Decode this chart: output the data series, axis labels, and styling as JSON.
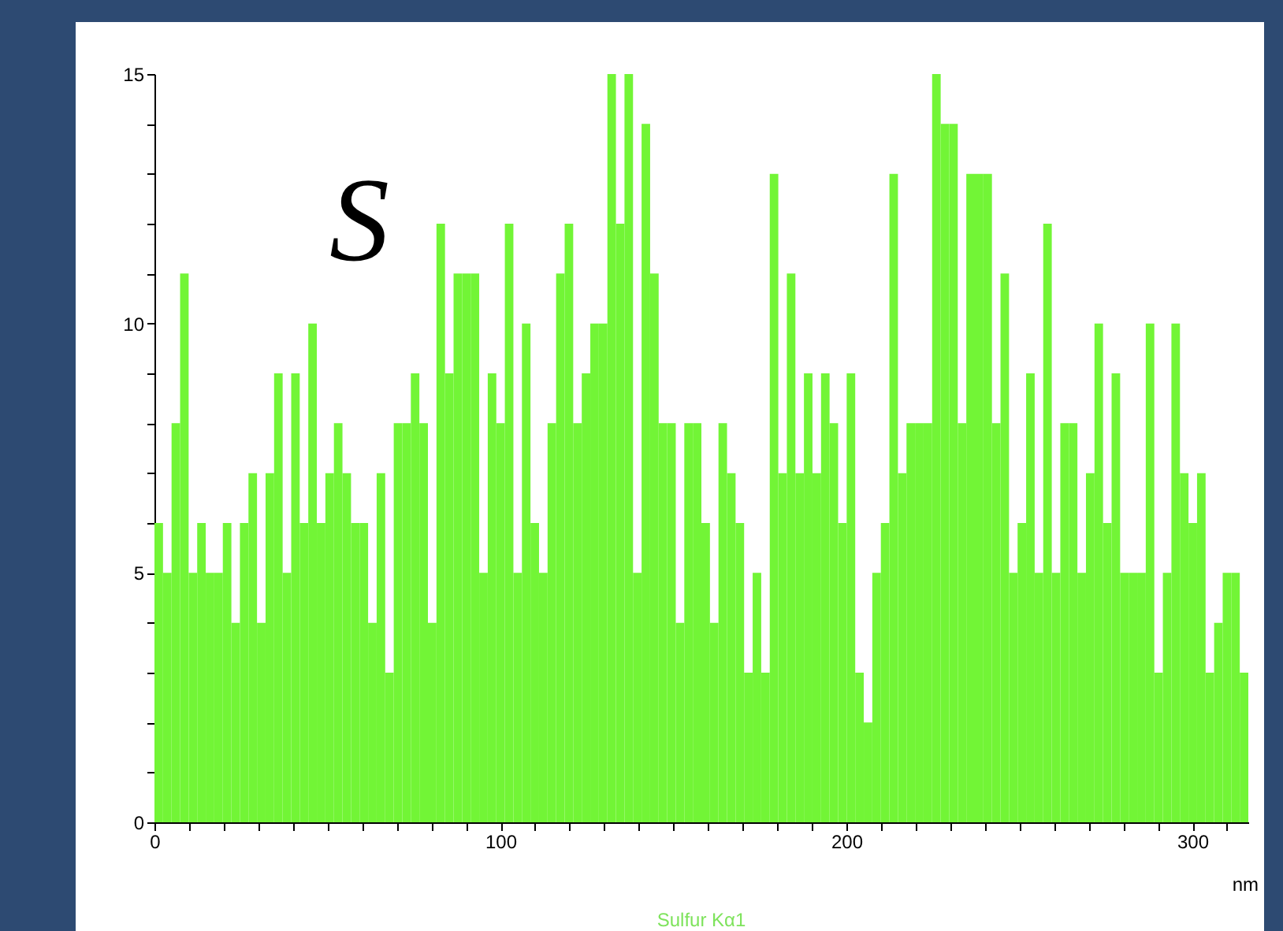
{
  "chart_data": {
    "type": "histogram",
    "title": "Sulfur Kα1",
    "xlabel": "nm",
    "annotations": [
      "S"
    ],
    "color": "#72f536",
    "bins": [
      0,
      2.47,
      4.94,
      7.41,
      9.88,
      12.35,
      14.82,
      17.29,
      19.76,
      22.23,
      24.7,
      27.17,
      29.64,
      32.11,
      34.58,
      37.05,
      39.52,
      41.99,
      44.46,
      46.93,
      49.4,
      51.87,
      54.34,
      56.81,
      59.28,
      61.75,
      64.22,
      66.69,
      69.16,
      71.63,
      74.1,
      76.57,
      79.04,
      81.51,
      83.98,
      86.45,
      88.92,
      91.39,
      93.86,
      96.33,
      98.8,
      101.27,
      103.74,
      106.21,
      108.68,
      111.15,
      113.62,
      116.09,
      118.56,
      121.03,
      123.5,
      125.97,
      128.44,
      130.91,
      133.38,
      135.85,
      138.32,
      140.79,
      143.26,
      145.73,
      148.2,
      150.67,
      153.14,
      155.61,
      158.08,
      160.55,
      163.02,
      165.49,
      167.96,
      170.43,
      172.9,
      175.37,
      177.84,
      180.31,
      182.78,
      185.25,
      187.72,
      190.19,
      192.66,
      195.13,
      197.6,
      200.07,
      202.54,
      205.01,
      207.48,
      209.95,
      212.42,
      214.89,
      217.36,
      219.83,
      222.3,
      224.77,
      227.24,
      229.71,
      232.18,
      234.65,
      237.12,
      239.59,
      242.06,
      244.53,
      247,
      249.47,
      251.94,
      254.41,
      256.88,
      259.35,
      261.82,
      264.29,
      266.76,
      269.23,
      271.7,
      274.17,
      276.64,
      279.11,
      281.58,
      284.05,
      286.52,
      288.99,
      291.46,
      293.93,
      296.4,
      298.87,
      301.34,
      303.81,
      306.28,
      308.75,
      311.22,
      313.69,
      316.16
    ],
    "values": [
      6,
      5,
      8,
      11,
      5,
      6,
      5,
      5,
      6,
      4,
      6,
      7,
      4,
      7,
      9,
      5,
      9,
      6,
      10,
      6,
      7,
      8,
      7,
      6,
      6,
      4,
      7,
      3,
      8,
      8,
      9,
      8,
      4,
      12,
      9,
      11,
      11,
      11,
      5,
      9,
      8,
      12,
      5,
      10,
      6,
      5,
      8,
      11,
      12,
      8,
      9,
      10,
      10,
      15,
      12,
      15,
      5,
      14,
      11,
      8,
      8,
      4,
      8,
      8,
      6,
      4,
      8,
      7,
      6,
      3,
      5,
      3,
      13,
      7,
      11,
      7,
      9,
      7,
      9,
      8,
      6,
      9,
      3,
      2,
      5,
      6,
      13,
      7,
      8,
      8,
      8,
      15,
      14,
      14,
      8,
      13,
      13,
      13,
      8,
      11,
      5,
      6,
      9,
      5,
      12,
      5,
      8,
      8,
      5,
      7,
      10,
      6,
      9,
      5,
      5,
      5,
      10,
      3,
      5,
      10,
      7,
      6,
      7,
      3,
      4,
      5,
      5,
      3
    ],
    "xlim": [
      0,
      316.16
    ],
    "ylim": [
      0,
      15
    ],
    "xticks": [
      0,
      {
        "value": 10,
        "label": null
      },
      {
        "value": 20,
        "label": null
      },
      {
        "value": 30,
        "label": null
      },
      {
        "value": 40,
        "label": null
      },
      {
        "value": 50,
        "label": null
      },
      {
        "value": 60,
        "label": null
      },
      {
        "value": 70,
        "label": null
      },
      {
        "value": 80,
        "label": null
      },
      {
        "value": 90,
        "label": null
      },
      100,
      {
        "value": 110,
        "label": null
      },
      {
        "value": 120,
        "label": null
      },
      {
        "value": 130,
        "label": null
      },
      {
        "value": 140,
        "label": null
      },
      {
        "value": 150,
        "label": null
      },
      {
        "value": 160,
        "label": null
      },
      {
        "value": 170,
        "label": null
      },
      {
        "value": 180,
        "label": null
      },
      {
        "value": 190,
        "label": null
      },
      200,
      {
        "value": 210,
        "label": null
      },
      {
        "value": 220,
        "label": null
      },
      {
        "value": 230,
        "label": null
      },
      {
        "value": 240,
        "label": null
      },
      {
        "value": 250,
        "label": null
      },
      {
        "value": 260,
        "label": null
      },
      {
        "value": 270,
        "label": null
      },
      {
        "value": 280,
        "label": null
      },
      {
        "value": 290,
        "label": null
      },
      300,
      {
        "value": 310,
        "label": null
      }
    ],
    "yticks": [
      0,
      {
        "value": 1,
        "label": null
      },
      {
        "value": 2,
        "label": null
      },
      {
        "value": 3,
        "label": null
      },
      {
        "value": 4,
        "label": null
      },
      5,
      {
        "value": 6,
        "label": null
      },
      {
        "value": 7,
        "label": null
      },
      {
        "value": 8,
        "label": null
      },
      {
        "value": 9,
        "label": null
      },
      10,
      {
        "value": 11,
        "label": null
      },
      {
        "value": 12,
        "label": null
      },
      {
        "value": 13,
        "label": null
      },
      {
        "value": 14,
        "label": null
      },
      15
    ]
  }
}
